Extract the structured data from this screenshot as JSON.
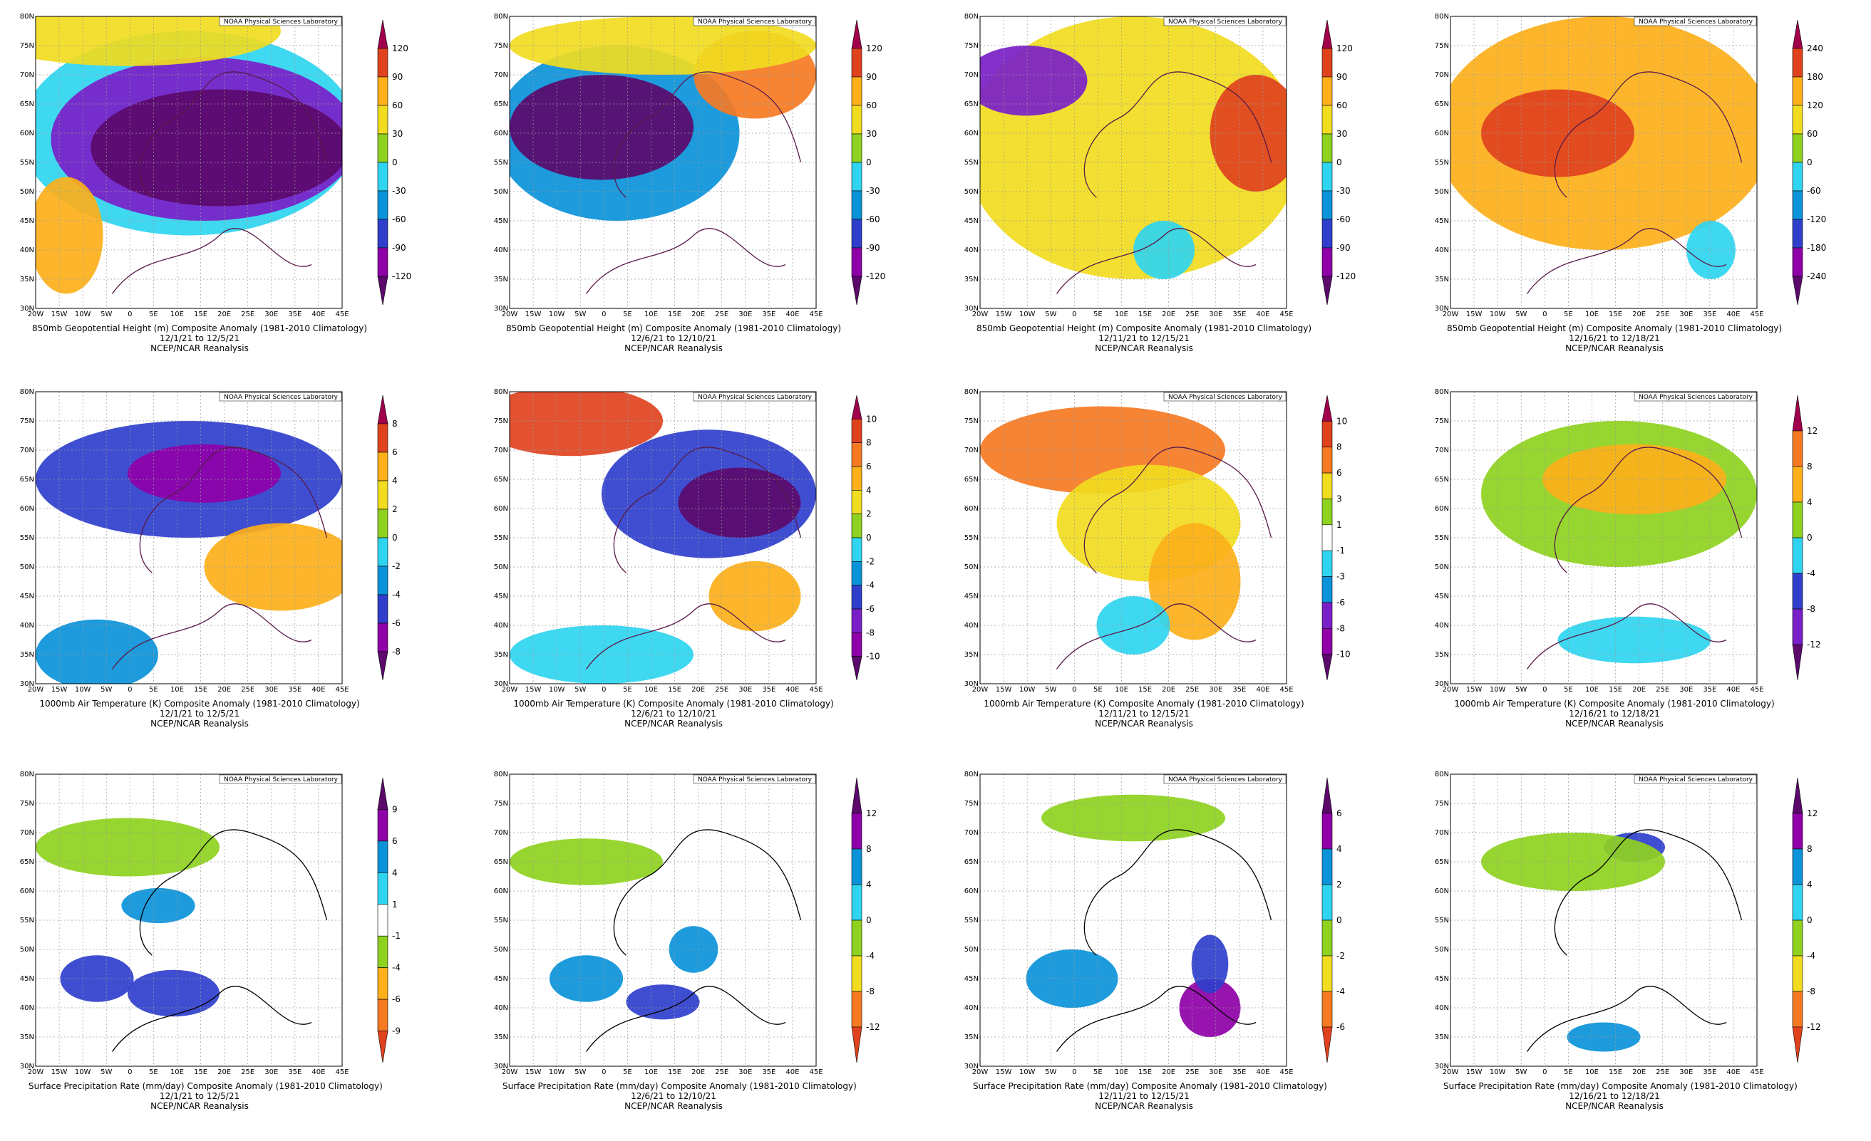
{
  "common": {
    "lab_label": "NOAA Physical Sciences Laboratory",
    "source": "NCEP/NCAR Reanalysis",
    "lon_ticks": [
      "20W",
      "15W",
      "10W",
      "5W",
      "0",
      "5E",
      "10E",
      "15E",
      "20E",
      "25E",
      "30E",
      "35E",
      "40E",
      "45E"
    ],
    "lat_ticks": [
      "30N",
      "35N",
      "40N",
      "45N",
      "50N",
      "55N",
      "60N",
      "65N",
      "70N",
      "75N",
      "80N"
    ]
  },
  "rows": [
    {
      "variable": "850mb Geopotential Height (m) Composite Anomaly (1981-2010 Climatology)",
      "panels": [
        {
          "period": "12/1/21   to 12/5/21",
          "levels": [
            "120",
            "90",
            "60",
            "30",
            "0",
            "-30",
            "-60",
            "-90",
            "-120"
          ]
        },
        {
          "period": "12/6/21   to 12/10/21",
          "levels": [
            "120",
            "90",
            "60",
            "30",
            "0",
            "-30",
            "-60",
            "-90",
            "-120"
          ]
        },
        {
          "period": "12/11/21   to 12/15/21",
          "levels": [
            "120",
            "90",
            "60",
            "30",
            "0",
            "-30",
            "-60",
            "-90",
            "-120"
          ]
        },
        {
          "period": "12/16/21   to 12/18/21",
          "levels": [
            "240",
            "180",
            "120",
            "60",
            "0",
            "-60",
            "-120",
            "-180",
            "-240"
          ]
        }
      ]
    },
    {
      "variable": "1000mb Air Temperature (K) Composite Anomaly (1981-2010 Climatology)",
      "panels": [
        {
          "period": "12/1/21   to 12/5/21",
          "levels": [
            "8",
            "6",
            "4",
            "2",
            "0",
            "-2",
            "-4",
            "-6",
            "-8"
          ]
        },
        {
          "period": "12/6/21   to 12/10/21",
          "levels": [
            "10",
            "8",
            "6",
            "4",
            "2",
            "0",
            "-2",
            "-4",
            "-6",
            "-8",
            "-10"
          ]
        },
        {
          "period": "12/11/21   to 12/15/21",
          "levels": [
            "10",
            "8",
            "6",
            "3",
            "1",
            "-1",
            "-3",
            "-6",
            "-8",
            "-10"
          ]
        },
        {
          "period": "12/16/21   to 12/18/21",
          "levels": [
            "12",
            "8",
            "4",
            "0",
            "-4",
            "-8",
            "-12"
          ]
        }
      ]
    },
    {
      "variable": "Surface Precipitation Rate (mm/day) Composite Anomaly (1981-2010 Climatology)",
      "panels": [
        {
          "period": "12/1/21   to 12/5/21",
          "levels": [
            "9",
            "6",
            "4",
            "1",
            "-1",
            "-4",
            "-6",
            "-9"
          ]
        },
        {
          "period": "12/6/21   to 12/10/21",
          "levels": [
            "12",
            "8",
            "4",
            "0",
            "-4",
            "-8",
            "-12"
          ]
        },
        {
          "period": "12/11/21   to 12/15/21",
          "levels": [
            "6",
            "4",
            "2",
            "0",
            "-2",
            "-4",
            "-6"
          ]
        },
        {
          "period": "12/16/21   to 12/18/21",
          "levels": [
            "12",
            "8",
            "4",
            "0",
            "-4",
            "-8",
            "-12"
          ]
        }
      ]
    }
  ],
  "colors": {
    "anomaly_scale": [
      "#a0004c",
      "#e0421e",
      "#f67a22",
      "#fdb01a",
      "#f1dc1f",
      "#8ed11e",
      "#ffffff",
      "#2fd5f0",
      "#0a93d9",
      "#2f3fcc",
      "#7a1fc8",
      "#8f00a8",
      "#5b0a6b"
    ],
    "precip_scale": [
      "#5b0a6b",
      "#8f00a8",
      "#2f3fcc",
      "#0a93d9",
      "#2fd5f0",
      "#ffffff",
      "#8ed11e",
      "#f1dc1f",
      "#fdb01a",
      "#f67a22",
      "#e0421e"
    ],
    "coastline": "#5a1a4a",
    "grid": "#9a9a9a"
  }
}
